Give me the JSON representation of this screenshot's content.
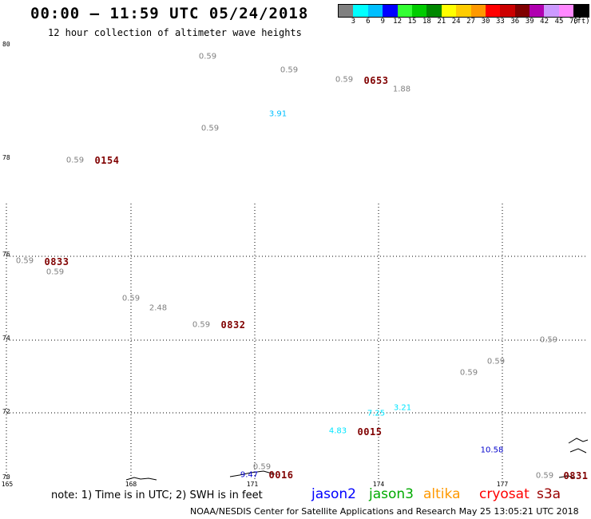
{
  "header": {
    "title": "00:00 – 11:59 UTC 05/24/2018",
    "subtitle": "12 hour collection of altimeter wave heights"
  },
  "legend": {
    "colors": [
      "#808080",
      "#00ffff",
      "#00bfff",
      "#0000ff",
      "#33ff33",
      "#00cc00",
      "#008800",
      "#ffff00",
      "#ffcc00",
      "#ff9900",
      "#ff0000",
      "#cc0000",
      "#800000",
      "#b000b0",
      "#cc99ff",
      "#ff88ff",
      "#000000"
    ],
    "ticks": [
      "3",
      "6",
      "9",
      "12",
      "15",
      "18",
      "21",
      "24",
      "27",
      "30",
      "33",
      "36",
      "39",
      "42",
      "45",
      "70"
    ],
    "unit": "(ft)"
  },
  "axes": {
    "lat_labels": [
      "80",
      "78",
      "76",
      "74",
      "72",
      "70"
    ],
    "lon_labels": [
      "165",
      "168",
      "171",
      "174",
      "177"
    ]
  },
  "observations": [
    {
      "text": "0.59",
      "color": "#808080"
    },
    {
      "text": "0.59",
      "color": "#808080"
    },
    {
      "text": "0.59",
      "color": "#808080"
    },
    {
      "text": "1.88",
      "color": "#808080"
    },
    {
      "text": "3.91",
      "color": "#00bfff"
    },
    {
      "text": "0.59",
      "color": "#808080"
    },
    {
      "text": "0.59",
      "color": "#808080"
    },
    {
      "text": "0.59",
      "color": "#808080"
    },
    {
      "text": "0.59",
      "color": "#808080"
    },
    {
      "text": "0.59",
      "color": "#808080"
    },
    {
      "text": "2.48",
      "color": "#808080"
    },
    {
      "text": "0.59",
      "color": "#808080"
    },
    {
      "text": "0.59",
      "color": "#808080"
    },
    {
      "text": "0.59",
      "color": "#808080"
    },
    {
      "text": "0.59",
      "color": "#808080"
    },
    {
      "text": "3.21",
      "color": "#00e5ff"
    },
    {
      "text": "7.25",
      "color": "#00e5ff"
    },
    {
      "text": "4.83",
      "color": "#00e5ff"
    },
    {
      "text": "10.58",
      "color": "#0000cc"
    },
    {
      "text": "9.47",
      "color": "#0000cc"
    },
    {
      "text": "0.59",
      "color": "#808080"
    },
    {
      "text": "0.59",
      "color": "#808080"
    }
  ],
  "times": [
    {
      "text": "0653",
      "color": "#800000"
    },
    {
      "text": "0154",
      "color": "#800000"
    },
    {
      "text": "0833",
      "color": "#800000"
    },
    {
      "text": "0832",
      "color": "#800000"
    },
    {
      "text": "0015",
      "color": "#800000"
    },
    {
      "text": "0016",
      "color": "#800000"
    },
    {
      "text": "0831",
      "color": "#800000"
    }
  ],
  "notes": {
    "text": "note: 1) Time is in UTC; 2) SWH is in feet",
    "satellites": [
      {
        "name": "jason2",
        "color": "#0000ff"
      },
      {
        "name": "jason3",
        "color": "#00aa00"
      },
      {
        "name": "altika",
        "color": "#ff9900"
      },
      {
        "name": "cryosat",
        "color": "#ff0000"
      },
      {
        "name": "s3a",
        "color": "#990000"
      }
    ]
  },
  "footer": {
    "credit": "NOAA/NESDIS Center for Satellite Applications and Research     May 25 13:05:21 UTC 2018"
  }
}
